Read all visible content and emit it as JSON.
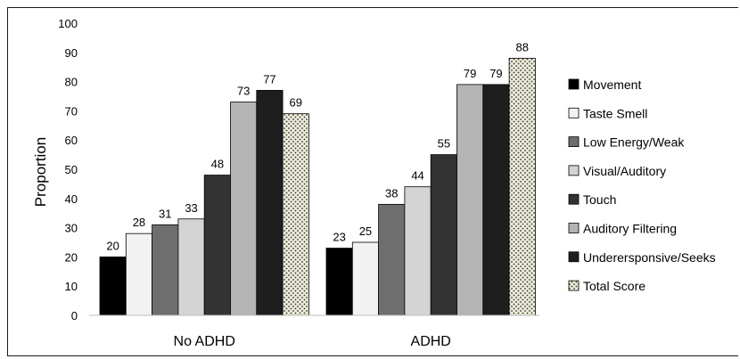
{
  "chart_data": {
    "type": "bar",
    "categories": [
      "No ADHD",
      "ADHD"
    ],
    "series": [
      {
        "name": "Movement",
        "values": [
          20,
          23
        ],
        "color": "#000000",
        "pattern": "solid"
      },
      {
        "name": "Taste Smell",
        "values": [
          28,
          25
        ],
        "color": "#f2f2f2",
        "pattern": "solid"
      },
      {
        "name": "Low Energy/Weak",
        "values": [
          31,
          38
        ],
        "color": "#6e6e6e",
        "pattern": "solid"
      },
      {
        "name": "Visual/Auditory",
        "values": [
          33,
          44
        ],
        "color": "#d4d4d4",
        "pattern": "solid"
      },
      {
        "name": "Touch",
        "values": [
          48,
          55
        ],
        "color": "#333333",
        "pattern": "solid"
      },
      {
        "name": "Auditory Filtering",
        "values": [
          73,
          79
        ],
        "color": "#b4b4b4",
        "pattern": "solid"
      },
      {
        "name": "Underersponsive/Seeks",
        "values": [
          77,
          79
        ],
        "color": "#1e1e1e",
        "pattern": "solid"
      },
      {
        "name": "Total Score",
        "values": [
          69,
          88
        ],
        "color": "#ecebd8",
        "pattern": "dots"
      }
    ],
    "data_labels": [
      [
        "20",
        "28",
        "31",
        "33",
        "48",
        "73",
        "77",
        "69"
      ],
      [
        "23",
        "25",
        "38",
        "44",
        "55",
        "79",
        "79",
        "88"
      ]
    ],
    "title": "",
    "xlabel": "",
    "ylabel": "Proportion",
    "ylim": [
      0,
      100
    ],
    "yticks": [
      0,
      10,
      20,
      30,
      40,
      50,
      60,
      70,
      80,
      90,
      100
    ],
    "grid": false,
    "legend_position": "right"
  }
}
